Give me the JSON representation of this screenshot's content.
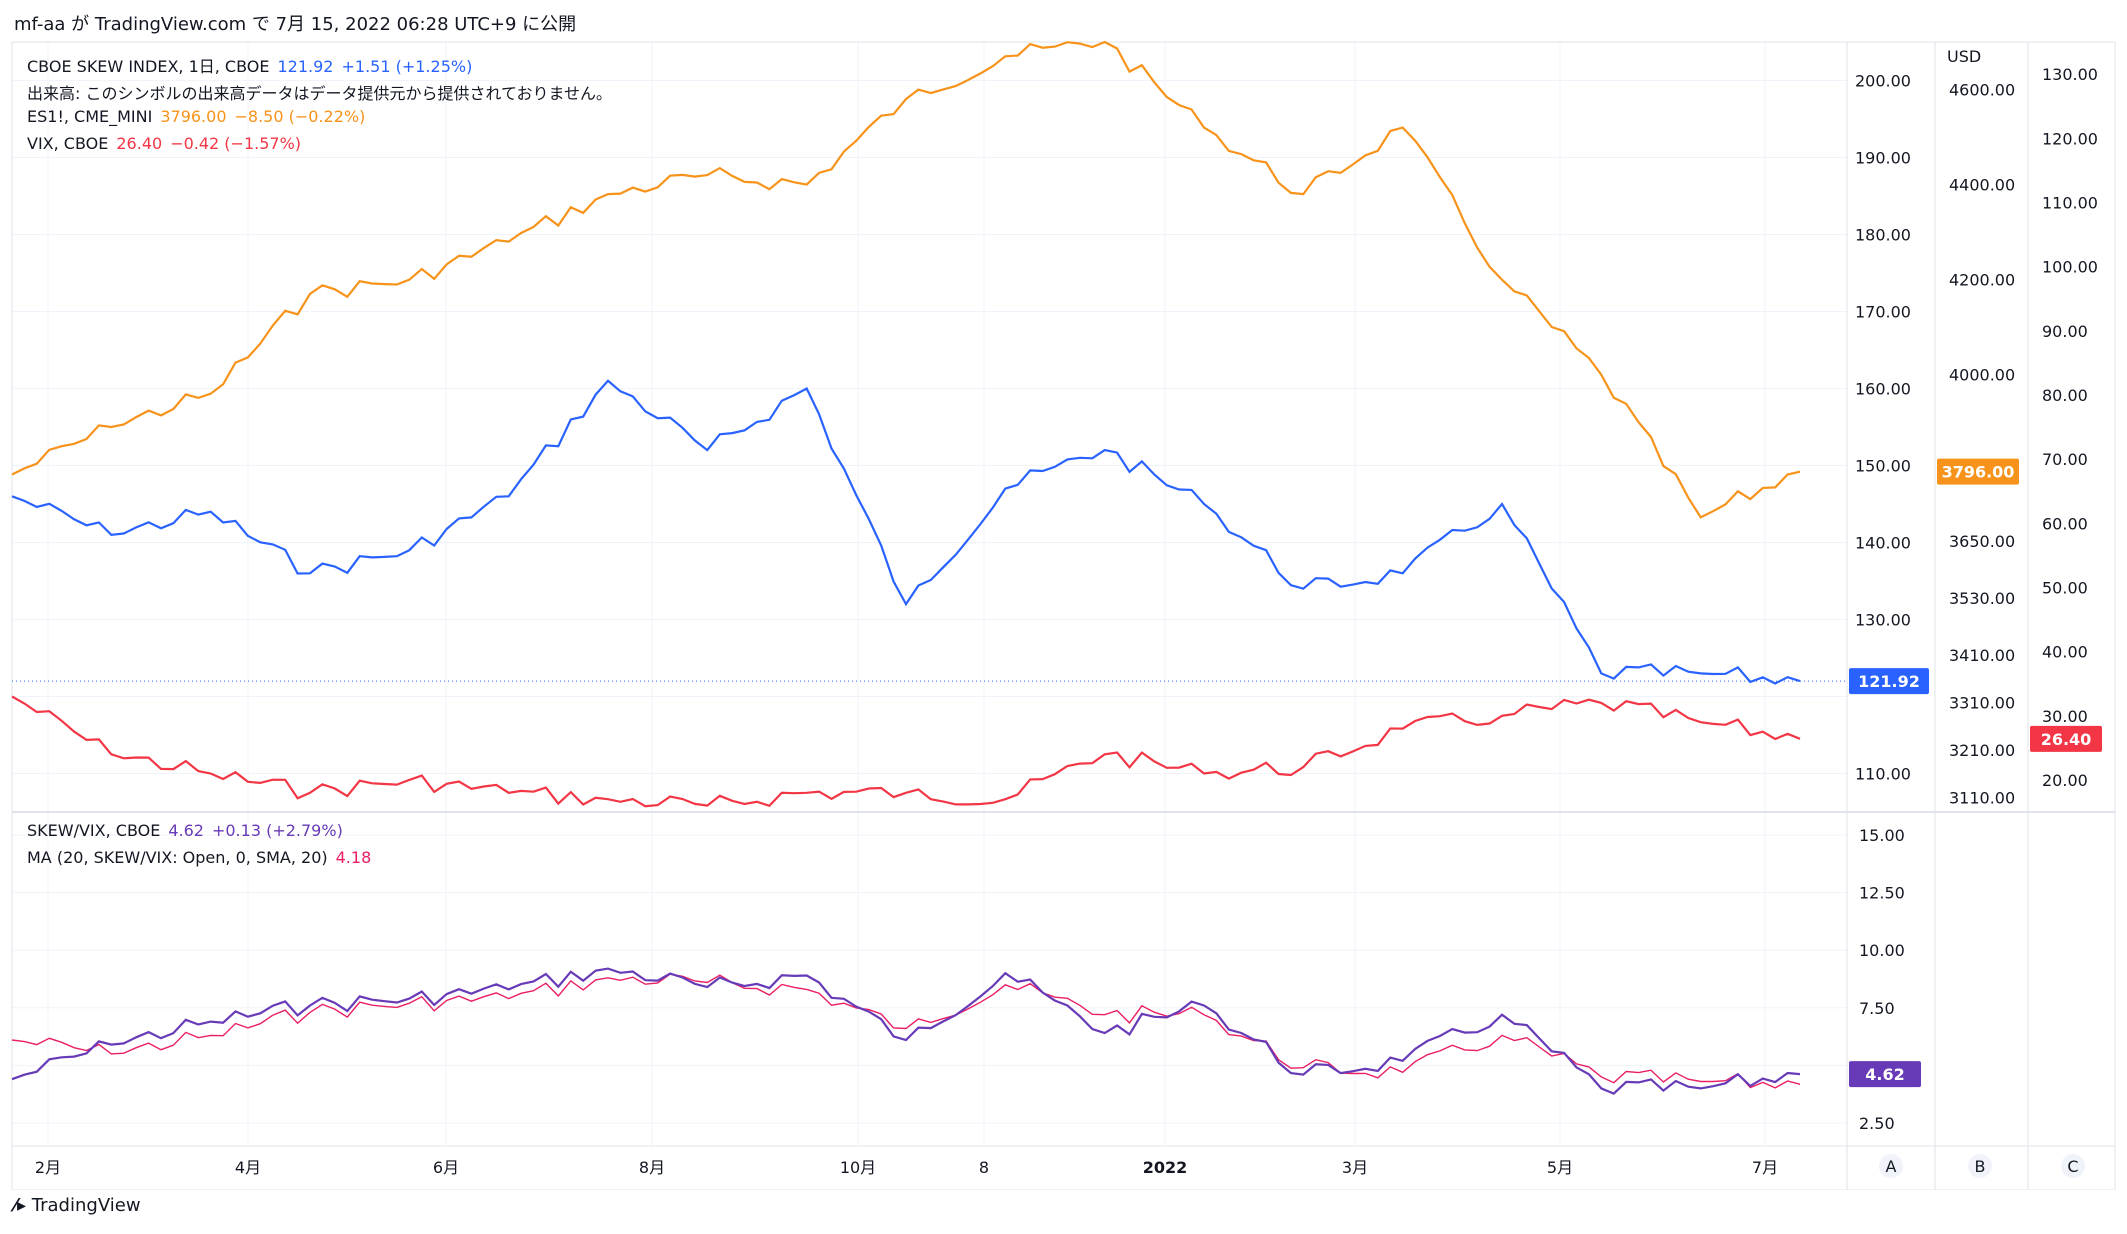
{
  "header": {
    "title": "mf-aa が TradingView.com で 7月 15, 2022 06:28 UTC+9 に公開"
  },
  "legend_main": [
    {
      "id": "skew",
      "label": "CBOE SKEW INDEX, 1日, CBOE",
      "value": "121.92",
      "change": "+1.51 (+1.25%)",
      "color": "#2962ff"
    },
    {
      "id": "note",
      "label": "出来高: このシンボルの出来高データはデータ提供元から提供されておりません。",
      "value": "",
      "change": "",
      "color": "#131722"
    },
    {
      "id": "es",
      "label": "ES1!, CME_MINI",
      "value": "3796.00",
      "change": "−8.50 (−0.22%)",
      "color": "#f7931a"
    },
    {
      "id": "vix",
      "label": "VIX, CBOE",
      "value": "26.40",
      "change": "−0.42 (−1.57%)",
      "color": "#f23645"
    }
  ],
  "legend_lower": [
    {
      "id": "ratio",
      "label": "SKEW/VIX, CBOE",
      "value": "4.62",
      "change": "+0.13 (+2.79%)",
      "color": "#673ab7"
    },
    {
      "id": "ma",
      "label": "MA (20, SKEW/VIX: Open, 0, SMA, 20)",
      "value": "4.18",
      "change": "",
      "color": "#e91e63"
    }
  ],
  "axes": {
    "a_ticks": [
      "200.00",
      "190.00",
      "180.00",
      "170.00",
      "160.00",
      "150.00",
      "140.00",
      "130.00",
      "110.00"
    ],
    "b_unit": "USD",
    "b_ticks": [
      "4600.00",
      "4400.00",
      "4200.00",
      "4000.00",
      "3650.00",
      "3530.00",
      "3410.00",
      "3310.00",
      "3210.00",
      "3110.00"
    ],
    "c_ticks": [
      "130.00",
      "120.00",
      "110.00",
      "100.00",
      "90.00",
      "80.00",
      "70.00",
      "60.00",
      "50.00",
      "40.00",
      "30.00",
      "20.00"
    ],
    "lower_ticks": [
      "15.00",
      "12.50",
      "10.00",
      "7.50",
      "2.50"
    ],
    "x_labels": [
      "2月",
      "4月",
      "6月",
      "8月",
      "10月",
      "8",
      "2022",
      "3月",
      "5月",
      "7月"
    ],
    "scale_buttons": [
      "A",
      "B",
      "C"
    ]
  },
  "price_tags": {
    "es": "3796.00",
    "skew": "121.92",
    "vix": "26.40",
    "ratio": "4.62"
  },
  "colors": {
    "skew": "#2962ff",
    "es": "#f7931a",
    "vix": "#f23645",
    "ratio": "#673ab7",
    "ma": "#e91e63",
    "grid": "#f0f3fa"
  },
  "footer": {
    "brand": "TradingView"
  },
  "chart_data": [
    {
      "type": "line",
      "title": "CBOE SKEW INDEX, 1日, CBOE",
      "x": [
        "2021-01",
        "2021-02",
        "2021-03",
        "2021-04",
        "2021-05",
        "2021-06",
        "2021-07",
        "2021-08",
        "2021-09",
        "2021-10",
        "2021-11",
        "2021-12",
        "2022-01",
        "2022-02",
        "2022-03",
        "2022-04",
        "2022-05",
        "2022-06",
        "2022-07"
      ],
      "series": [
        {
          "name": "CBOE SKEW INDEX",
          "axis": "A",
          "values": [
            146,
            141,
            144,
            136,
            139,
            146,
            161,
            152,
            160,
            132,
            147,
            152,
            145,
            134,
            136,
            145,
            123,
            123,
            122
          ]
        },
        {
          "name": "ES1!",
          "axis": "B",
          "values": [
            3790,
            3890,
            3960,
            4170,
            4200,
            4280,
            4380,
            4420,
            4400,
            4580,
            4670,
            4700,
            4520,
            4380,
            4520,
            4200,
            4000,
            3700,
            3796
          ]
        },
        {
          "name": "VIX",
          "axis": "C",
          "values": [
            33,
            24,
            21,
            18,
            20,
            18,
            17,
            16,
            18,
            18,
            17,
            24,
            21,
            22,
            28,
            30,
            32,
            29,
            26.4
          ]
        }
      ],
      "ylim_a": [
        105,
        205
      ],
      "ylim_b": [
        3080,
        4700
      ],
      "ylim_c": [
        15,
        135
      ]
    },
    {
      "type": "line",
      "title": "SKEW/VIX, CBOE",
      "x": [
        "2021-01",
        "2021-02",
        "2021-03",
        "2021-04",
        "2021-05",
        "2021-06",
        "2021-07",
        "2021-08",
        "2021-09",
        "2021-10",
        "2021-11",
        "2021-12",
        "2022-01",
        "2022-02",
        "2022-03",
        "2022-04",
        "2022-05",
        "2022-06",
        "2022-07"
      ],
      "series": [
        {
          "name": "SKEW/VIX",
          "values": [
            4.4,
            5.9,
            6.9,
            7.6,
            7.9,
            8.3,
            9.2,
            8.4,
            8.9,
            6.1,
            9.0,
            6.4,
            7.6,
            4.6,
            5.2,
            7.2,
            4.0,
            4.0,
            4.62
          ]
        },
        {
          "name": "MA (20, SKEW/VIX: Open, 0, SMA, 20)",
          "values": [
            6.1,
            5.5,
            6.3,
            7.3,
            7.7,
            7.9,
            8.8,
            8.6,
            8.3,
            6.6,
            8.5,
            7.2,
            7.2,
            4.9,
            4.7,
            6.3,
            4.5,
            4.3,
            4.18
          ]
        }
      ],
      "ylim": [
        1.5,
        16
      ]
    }
  ]
}
